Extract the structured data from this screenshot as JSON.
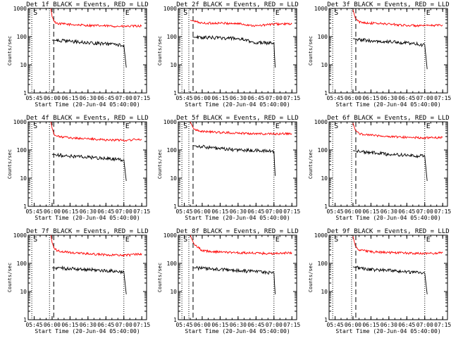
{
  "chart_data": [
    {
      "type": "line",
      "title": "Det 1f BLACK = Events, RED = LLD",
      "xlabel": "Start Time (20-Jun-04 05:40:00)",
      "ylabel": "Counts/sec",
      "yscale": "log",
      "ylim": [
        1,
        1000
      ],
      "x_ticks": [
        "05:45",
        "06:00",
        "06:15",
        "06:30",
        "06:45",
        "07:00",
        "07:15"
      ],
      "y_ticks": [
        "1",
        "10",
        "100",
        "1000"
      ],
      "markers": [
        {
          "label": "S",
          "x": "05:43"
        },
        {
          "label": "E",
          "x": "07:00"
        }
      ],
      "series": [
        {
          "name": "LLD",
          "color": "#ff0000",
          "x": [
            "05:59",
            "06:00",
            "06:02",
            "06:05",
            "06:15",
            "06:30",
            "06:45",
            "07:00",
            "07:15"
          ],
          "y": [
            1000,
            520,
            330,
            290,
            270,
            250,
            240,
            230,
            240
          ]
        },
        {
          "name": "Events",
          "color": "#000000",
          "x": [
            "06:00",
            "06:15",
            "06:30",
            "06:45",
            "07:00",
            "07:02"
          ],
          "y": [
            75,
            68,
            60,
            55,
            50,
            8
          ]
        }
      ]
    },
    {
      "type": "line",
      "title": "Det 2f BLACK = Events, RED = LLD",
      "xlabel": "Start Time (20-Jun-04 05:40:00)",
      "ylabel": "Counts/sec",
      "yscale": "log",
      "ylim": [
        1,
        1000
      ],
      "x_ticks": [
        "05:45",
        "06:00",
        "06:15",
        "06:30",
        "06:45",
        "07:00",
        "07:15"
      ],
      "y_ticks": [
        "1",
        "10",
        "100",
        "1000"
      ],
      "markers": [
        {
          "label": "S",
          "x": "05:43"
        },
        {
          "label": "E",
          "x": "07:00"
        }
      ],
      "series": [
        {
          "name": "LLD",
          "color": "#ff0000",
          "x": [
            "05:50",
            "06:00",
            "06:15",
            "06:30",
            "06:45",
            "07:00",
            "07:15"
          ],
          "y": [
            380,
            300,
            300,
            290,
            240,
            280,
            280
          ]
        },
        {
          "name": "Events",
          "color": "#000000",
          "x": [
            "05:52",
            "06:15",
            "06:30",
            "06:45",
            "07:00",
            "07:01"
          ],
          "y": [
            95,
            90,
            85,
            60,
            60,
            8
          ]
        }
      ]
    },
    {
      "type": "line",
      "title": "Det 3f BLACK = Events, RED = LLD",
      "xlabel": "Start Time (20-Jun-04 05:40:00)",
      "ylabel": "Counts/sec",
      "yscale": "log",
      "ylim": [
        1,
        1000
      ],
      "x_ticks": [
        "05:45",
        "06:00",
        "06:15",
        "06:30",
        "06:45",
        "07:00",
        "07:15"
      ],
      "y_ticks": [
        "1",
        "10",
        "100",
        "1000"
      ],
      "markers": [
        {
          "label": "S",
          "x": "05:43"
        },
        {
          "label": "E",
          "x": "07:00"
        }
      ],
      "series": [
        {
          "name": "LLD",
          "color": "#ff0000",
          "x": [
            "06:00",
            "06:02",
            "06:05",
            "06:15",
            "06:30",
            "06:45",
            "07:00",
            "07:15"
          ],
          "y": [
            900,
            450,
            330,
            300,
            280,
            250,
            240,
            260
          ]
        },
        {
          "name": "Events",
          "color": "#000000",
          "x": [
            "06:00",
            "06:15",
            "06:30",
            "06:45",
            "07:00",
            "07:02"
          ],
          "y": [
            85,
            70,
            65,
            60,
            50,
            7
          ]
        }
      ]
    },
    {
      "type": "line",
      "title": "Det 4f BLACK = Events, RED = LLD",
      "xlabel": "Start Time (20-Jun-04 05:40:00)",
      "ylabel": "Counts/sec",
      "yscale": "log",
      "ylim": [
        1,
        1000
      ],
      "x_ticks": [
        "05:45",
        "06:00",
        "06:15",
        "06:30",
        "06:45",
        "07:00",
        "07:15"
      ],
      "y_ticks": [
        "1",
        "10",
        "100",
        "1000"
      ],
      "markers": [
        {
          "label": "S",
          "x": "05:43"
        },
        {
          "label": "E",
          "x": "07:00"
        }
      ],
      "series": [
        {
          "name": "LLD",
          "color": "#ff0000",
          "x": [
            "05:59",
            "06:00",
            "06:02",
            "06:05",
            "06:15",
            "06:30",
            "06:45",
            "07:00",
            "07:15"
          ],
          "y": [
            1000,
            600,
            330,
            300,
            270,
            250,
            230,
            220,
            240
          ]
        },
        {
          "name": "Events",
          "color": "#000000",
          "x": [
            "06:00",
            "06:15",
            "06:30",
            "06:45",
            "07:00",
            "07:02"
          ],
          "y": [
            70,
            60,
            55,
            50,
            45,
            8
          ]
        }
      ]
    },
    {
      "type": "line",
      "title": "Det 5f BLACK = Events, RED = LLD",
      "xlabel": "Start Time (20-Jun-04 05:40:00)",
      "ylabel": "Counts/sec",
      "yscale": "log",
      "ylim": [
        1,
        1000
      ],
      "x_ticks": [
        "05:45",
        "06:00",
        "06:15",
        "06:30",
        "06:45",
        "07:00",
        "07:15"
      ],
      "y_ticks": [
        "1",
        "10",
        "100",
        "1000"
      ],
      "markers": [
        {
          "label": "S",
          "x": "05:43"
        },
        {
          "label": "E",
          "x": "07:00"
        }
      ],
      "series": [
        {
          "name": "LLD",
          "color": "#ff0000",
          "x": [
            "05:50",
            "05:53",
            "06:00",
            "06:15",
            "06:30",
            "06:45",
            "07:00",
            "07:15"
          ],
          "y": [
            1000,
            550,
            460,
            420,
            400,
            380,
            370,
            380
          ]
        },
        {
          "name": "Events",
          "color": "#000000",
          "x": [
            "05:52",
            "06:15",
            "06:30",
            "06:45",
            "07:00",
            "07:01"
          ],
          "y": [
            145,
            110,
            100,
            95,
            90,
            12
          ]
        }
      ]
    },
    {
      "type": "line",
      "title": "Det 6f BLACK = Events, RED = LLD",
      "xlabel": "Start Time (20-Jun-04 05:40:00)",
      "ylabel": "Counts/sec",
      "yscale": "log",
      "ylim": [
        1,
        1000
      ],
      "x_ticks": [
        "05:45",
        "06:00",
        "06:15",
        "06:30",
        "06:45",
        "07:00",
        "07:15"
      ],
      "y_ticks": [
        "1",
        "10",
        "100",
        "1000"
      ],
      "markers": [
        {
          "label": "S",
          "x": "05:43"
        },
        {
          "label": "E",
          "x": "07:00"
        }
      ],
      "series": [
        {
          "name": "LLD",
          "color": "#ff0000",
          "x": [
            "06:00",
            "06:02",
            "06:05",
            "06:15",
            "06:30",
            "06:45",
            "07:00",
            "07:15"
          ],
          "y": [
            900,
            500,
            380,
            340,
            300,
            280,
            270,
            280
          ]
        },
        {
          "name": "Events",
          "color": "#000000",
          "x": [
            "06:00",
            "06:15",
            "06:30",
            "06:45",
            "07:00",
            "07:02"
          ],
          "y": [
            95,
            80,
            70,
            65,
            60,
            8
          ]
        }
      ]
    },
    {
      "type": "line",
      "title": "Det 7f BLACK = Events, RED = LLD",
      "xlabel": "Start Time (20-Jun-04 05:40:00)",
      "ylabel": "Counts/sec",
      "yscale": "log",
      "ylim": [
        1,
        1000
      ],
      "x_ticks": [
        "05:45",
        "06:00",
        "06:15",
        "06:30",
        "06:45",
        "07:00",
        "07:15"
      ],
      "y_ticks": [
        "1",
        "10",
        "100",
        "1000"
      ],
      "markers": [
        {
          "label": "S",
          "x": "05:43"
        },
        {
          "label": "E",
          "x": "07:00"
        }
      ],
      "series": [
        {
          "name": "LLD",
          "color": "#ff0000",
          "x": [
            "05:59",
            "06:00",
            "06:02",
            "06:05",
            "06:15",
            "06:30",
            "06:45",
            "07:00",
            "07:15"
          ],
          "y": [
            1000,
            550,
            320,
            280,
            240,
            220,
            200,
            190,
            220
          ]
        },
        {
          "name": "Events",
          "color": "#000000",
          "x": [
            "06:00",
            "06:15",
            "06:30",
            "06:45",
            "07:00",
            "07:02"
          ],
          "y": [
            70,
            65,
            60,
            55,
            50,
            8
          ]
        }
      ]
    },
    {
      "type": "line",
      "title": "Det 8f BLACK = Events, RED = LLD",
      "xlabel": "Start Time (20-Jun-04 05:40:00)",
      "ylabel": "Counts/sec",
      "yscale": "log",
      "ylim": [
        1,
        1000
      ],
      "x_ticks": [
        "05:45",
        "06:00",
        "06:15",
        "06:30",
        "06:45",
        "07:00",
        "07:15"
      ],
      "y_ticks": [
        "1",
        "10",
        "100",
        "1000"
      ],
      "markers": [
        {
          "label": "S",
          "x": "05:43"
        },
        {
          "label": "E",
          "x": "07:00"
        }
      ],
      "series": [
        {
          "name": "LLD",
          "color": "#ff0000",
          "x": [
            "05:50",
            "05:53",
            "06:00",
            "06:15",
            "06:30",
            "06:45",
            "07:00",
            "07:15"
          ],
          "y": [
            1000,
            500,
            280,
            250,
            240,
            230,
            220,
            240
          ]
        },
        {
          "name": "Events",
          "color": "#000000",
          "x": [
            "05:52",
            "06:15",
            "06:30",
            "06:45",
            "07:00",
            "07:01"
          ],
          "y": [
            70,
            60,
            55,
            50,
            45,
            8
          ]
        }
      ]
    },
    {
      "type": "line",
      "title": "Det 9f BLACK = Events, RED = LLD",
      "xlabel": "Start Time (20-Jun-04 05:40:00)",
      "ylabel": "Counts/sec",
      "yscale": "log",
      "ylim": [
        1,
        1000
      ],
      "x_ticks": [
        "05:45",
        "06:00",
        "06:15",
        "06:30",
        "06:45",
        "07:00",
        "07:15"
      ],
      "y_ticks": [
        "1",
        "10",
        "100",
        "1000"
      ],
      "markers": [
        {
          "label": "S",
          "x": "05:43"
        },
        {
          "label": "E",
          "x": "07:00"
        }
      ],
      "series": [
        {
          "name": "LLD",
          "color": "#ff0000",
          "x": [
            "06:00",
            "06:02",
            "06:05",
            "06:15",
            "06:30",
            "06:45",
            "07:00",
            "07:15"
          ],
          "y": [
            900,
            420,
            300,
            260,
            240,
            230,
            220,
            240
          ]
        },
        {
          "name": "Events",
          "color": "#000000",
          "x": [
            "06:00",
            "06:15",
            "06:30",
            "06:45",
            "07:00",
            "07:02"
          ],
          "y": [
            75,
            60,
            55,
            50,
            45,
            8
          ]
        }
      ]
    }
  ]
}
